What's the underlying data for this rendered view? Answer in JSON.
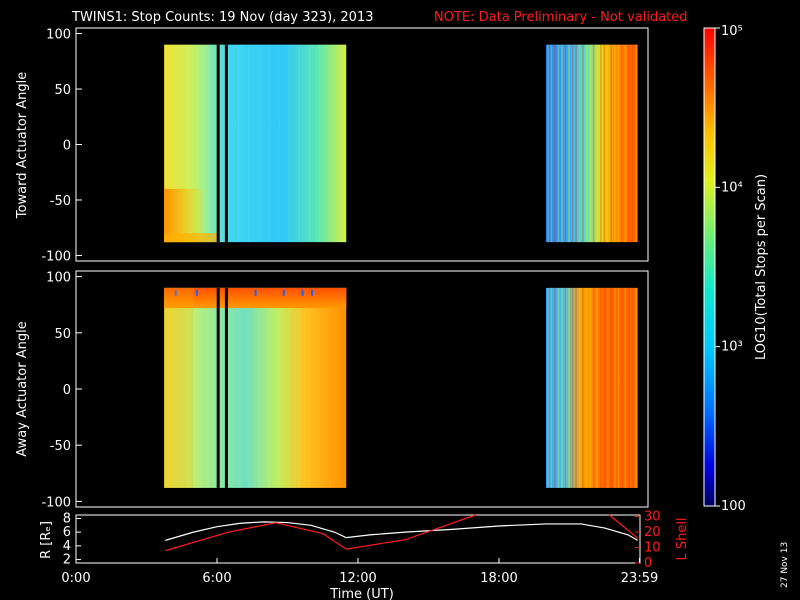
{
  "header": {
    "title": "TWINS1: Stop Counts: 19 Nov (day 323), 2013",
    "note": "NOTE: Data Preliminary - Not validated",
    "note_color": "#ff1a1a"
  },
  "footer": {
    "date_stamp": "27 Nov 13"
  },
  "chart_data": [
    {
      "type": "heatmap",
      "name": "top-panel",
      "ylabel": "Toward Actuator Angle",
      "ylim": [
        -105,
        105
      ],
      "yticks": [
        100,
        50,
        0,
        -50,
        -100
      ],
      "xlim": [
        0,
        24
      ],
      "angle_range": [
        -88,
        90
      ],
      "data_blocks": [
        {
          "start": 3.75,
          "end": 11.5
        },
        {
          "start": 20.0,
          "end": 23.9
        }
      ],
      "gaps": [
        6.05,
        6.4
      ],
      "color_scale_log": true
    },
    {
      "type": "heatmap",
      "name": "bottom-panel",
      "ylabel": "Away Actuator Angle",
      "ylim": [
        -105,
        105
      ],
      "yticks": [
        100,
        50,
        0,
        -50,
        -100
      ],
      "xlim": [
        0,
        24
      ],
      "angle_range": [
        -88,
        90
      ],
      "data_blocks": [
        {
          "start": 3.75,
          "end": 11.5
        },
        {
          "start": 20.0,
          "end": 23.9
        }
      ],
      "gaps": [
        6.05,
        6.4
      ],
      "color_scale_log": true
    },
    {
      "type": "line",
      "name": "orbit-panel",
      "xlabel": "Time (UT)",
      "xticks": [
        "0:00",
        "6:00",
        "12:00",
        "18:00",
        "23:59"
      ],
      "xlim": [
        0,
        24
      ],
      "ylabel_left": "R [Rₑ]",
      "ylabel_right": "L Shell",
      "yticks_left": [
        8,
        6,
        4,
        2
      ],
      "yticks_right": [
        30,
        20,
        10,
        0
      ],
      "ylim_left": [
        1.5,
        8.5
      ],
      "ylim_right": [
        0,
        31
      ],
      "series": [
        {
          "name": "R [Rₑ]",
          "color": "#ffffff",
          "x": [
            3.8,
            5.0,
            6.0,
            7.0,
            8.0,
            9.0,
            10.0,
            11.0,
            11.5,
            12.5,
            14.0,
            16.0,
            18.0,
            20.0,
            21.5,
            22.5,
            23.5,
            23.9
          ],
          "y": [
            4.8,
            6.0,
            6.8,
            7.3,
            7.5,
            7.4,
            7.0,
            6.0,
            5.2,
            5.6,
            6.0,
            6.4,
            6.9,
            7.2,
            7.2,
            6.6,
            5.6,
            4.8
          ]
        },
        {
          "name": "L Shell",
          "color": "#ff1a1a",
          "x": [
            3.8,
            6.5,
            8.5,
            10.5,
            11.5,
            14.0,
            17.0
          ],
          "y": [
            8,
            20,
            26,
            19,
            9,
            15,
            31
          ],
          "x2": [
            22.7,
            23.9
          ],
          "y2": [
            31,
            16
          ]
        }
      ]
    },
    {
      "type": "colorbar",
      "label": "LOG10(Total Stops per Scan)",
      "tick_labels": [
        "10⁵",
        "10⁴",
        "10³",
        "100"
      ],
      "tick_values": [
        100000,
        10000,
        1000,
        100
      ],
      "min": 100,
      "max": 100000,
      "scale": "log"
    }
  ]
}
